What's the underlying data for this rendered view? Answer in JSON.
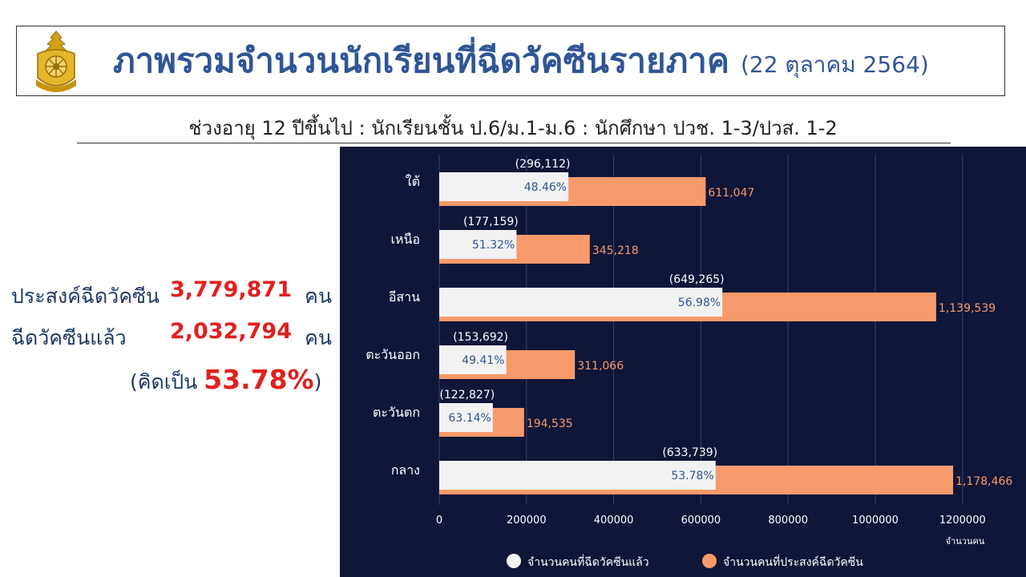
{
  "header": {
    "title": "ภาพรวมจำนวนนักเรียนที่ฉีดวัคซีนรายภาค",
    "date": "(22 ตุลาคม 2564)",
    "subtitle": "ช่วงอายุ 12 ปีขึ้นไป : นักเรียนชั้น ป.6/ม.1-ม.6 : นักศึกษา ปวช. 1-3/ปวส. 1-2"
  },
  "summary": {
    "intended_label": "ประสงค์ฉีดวัคซีน",
    "intended_value": "3,779,871",
    "vaccinated_label": "ฉีดวัคซีนแล้ว",
    "vaccinated_value": "2,032,794",
    "unit": "คน",
    "percent_prefix": "(คิดเป็น",
    "percent_value": "53.78%",
    "percent_suffix": ")"
  },
  "colors": {
    "title": "#2f5596",
    "highlight": "#e02020",
    "chart_bg": "#0f1638",
    "vaccinated": "#f2f2f2",
    "intended": "#f79a6b"
  },
  "chart_data": {
    "type": "bar",
    "orientation": "horizontal",
    "categories": [
      "ใต้",
      "เหนือ",
      "อีสาน",
      "ตะวันออก",
      "ตะวันตก",
      "กลาง"
    ],
    "series": [
      {
        "name": "จำนวนคนที่ฉีดวัคซีนแล้ว",
        "values": [
          296112,
          177159,
          649265,
          153692,
          122827,
          633739
        ],
        "labels": [
          "(296,112)",
          "(177,159)",
          "(649,265)",
          "(153,692)",
          "(122,827)",
          "(633,739)"
        ],
        "percent_labels": [
          "48.46%",
          "51.32%",
          "56.98%",
          "49.41%",
          "63.14%",
          "53.78%"
        ]
      },
      {
        "name": "จำนวนคนที่ประสงค์ฉีดวัคซีน",
        "values": [
          611047,
          345218,
          1139539,
          311066,
          194535,
          1178466
        ],
        "labels": [
          "611,047",
          "345,218",
          "1,139,539",
          "311,066",
          "194,535",
          "1,178,466"
        ]
      }
    ],
    "xlim": [
      0,
      1200000
    ],
    "xticks": [
      0,
      200000,
      400000,
      600000,
      800000,
      1000000,
      1200000
    ],
    "xlabel": "จำนวนคน",
    "grid": "vertical",
    "legend": "bottom"
  }
}
